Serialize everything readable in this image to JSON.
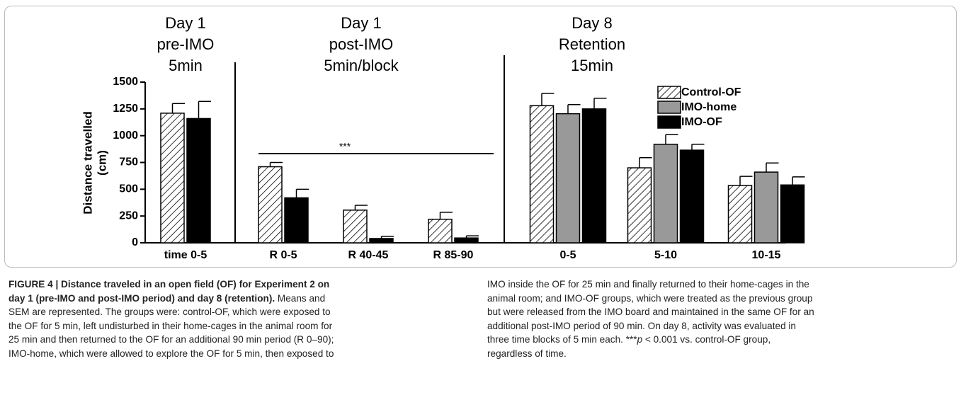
{
  "chart_data": {
    "type": "bar",
    "sections": [
      [
        "Day 1",
        "pre-IMO",
        "5min"
      ],
      [
        "Day 1",
        "post-IMO",
        "5min/block"
      ],
      [
        "Day 8",
        "Retention",
        "15min"
      ]
    ],
    "y_label": [
      "Distance travelled",
      "(cm)"
    ],
    "categories": [
      "time 0-5",
      "R 0-5",
      "R 40-45",
      "R 85-90",
      "0-5",
      "5-10",
      "10-15"
    ],
    "series": [
      {
        "name": "Control-OF",
        "color": "#ffffff",
        "hatch": true,
        "values": [
          1210,
          710,
          305,
          220,
          1280,
          700,
          535
        ],
        "errors": [
          90,
          40,
          45,
          65,
          115,
          95,
          85
        ]
      },
      {
        "name": "IMO-home",
        "color": "#999999",
        "values": [
          null,
          null,
          null,
          null,
          1205,
          920,
          660
        ],
        "errors": [
          null,
          null,
          null,
          null,
          85,
          90,
          85
        ]
      },
      {
        "name": "IMO-OF",
        "color": "#000000",
        "values": [
          1160,
          420,
          40,
          45,
          1250,
          865,
          540
        ],
        "errors": [
          160,
          80,
          20,
          20,
          100,
          55,
          75
        ]
      }
    ],
    "significance": "***",
    "ylim": [
      0,
      1500
    ],
    "yticks": [
      0,
      250,
      500,
      750,
      1000,
      1250,
      1500
    ]
  },
  "caption": {
    "left": [
      {
        "bold": "FIGURE 4 | Distance traveled in an open field (OF) for Experiment 2 on"
      },
      {
        "bold": "day 1 (pre-IMO and post-IMO period) and day 8 (retention).",
        "text": "Means and"
      },
      {
        "text": "SEM are represented. The groups were: control-OF, which were exposed to"
      },
      {
        "text": "the OF for 5 min, left undisturbed in their home-cages in the animal room for"
      },
      {
        "text": "25 min and then returned to the OF for an additional 90 min period (R 0–90);"
      },
      {
        "text": "IMO-home, which were allowed to explore the OF for 5 min, then exposed to"
      }
    ],
    "right": [
      {
        "text": "IMO inside the OF for 25 min and finally returned to their home-cages in the"
      },
      {
        "text": "animal room; and IMO-OF groups, which were treated as the previous group"
      },
      {
        "text": "but were released from the IMO board and maintained in the same OF for an"
      },
      {
        "text": "additional post-IMO period of 90 min. On day 8, activity was evaluated in"
      },
      {
        "text": "three time blocks of 5 min each. ***",
        "italic": "p",
        "after": "< 0.001 vs. control-OF group,"
      },
      {
        "text": "regardless of time."
      }
    ]
  }
}
